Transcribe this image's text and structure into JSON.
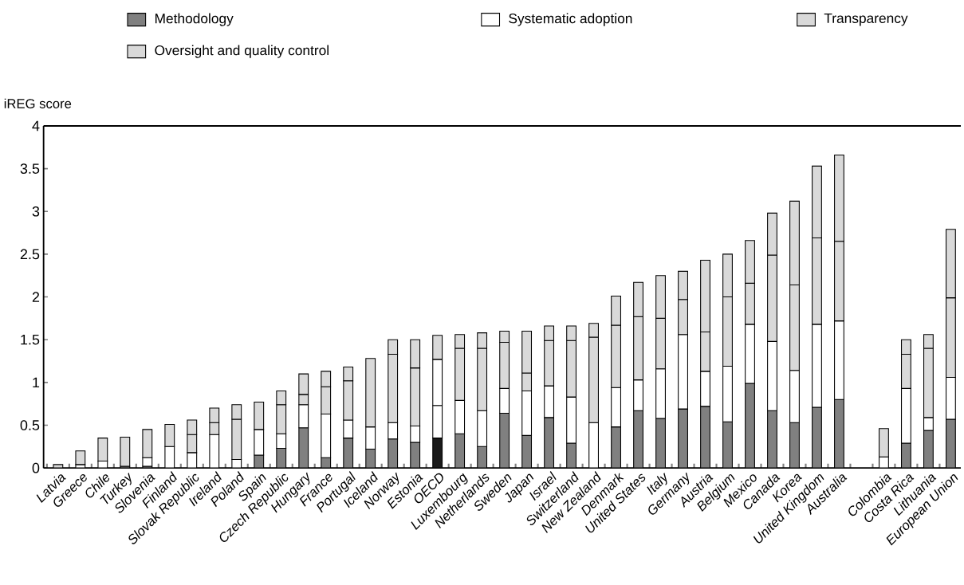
{
  "chart_data": {
    "type": "bar",
    "stacked": true,
    "ylabel": "iREG score",
    "legend": "top",
    "grid": false,
    "categories": [
      "Latvia",
      "Greece",
      "Chile",
      "Turkey",
      "Slovenia",
      "Finland",
      "Slovak Republic",
      "Ireland",
      "Poland",
      "Spain",
      "Czech Republic",
      "Hungary",
      "France",
      "Portugal",
      "Iceland",
      "Norway",
      "Estonia",
      "OECD",
      "Luxembourg",
      "Netherlands",
      "Sweden",
      "Japan",
      "Israel",
      "Switzerland",
      "New Zealand",
      "Denmark",
      "United States",
      "Italy",
      "Germany",
      "Austria",
      "Belgium",
      "Mexico",
      "Canada",
      "Korea",
      "United Kingdom",
      "Australia",
      null,
      "Colombia",
      "Costa Rica",
      "Lithuania",
      "European Union"
    ],
    "ylim": [
      0,
      4
    ],
    "yticks": [
      0,
      0.5,
      1,
      1.5,
      2,
      2.5,
      3,
      3.5,
      4
    ],
    "series": [
      {
        "name": "Methodology",
        "color": "#808080",
        "colors": [
          "#808080",
          "#808080",
          "#808080",
          "#808080",
          "#808080",
          "#808080",
          "#808080",
          "#808080",
          "#808080",
          "#808080",
          "#808080",
          "#808080",
          "#808080",
          "#808080",
          "#808080",
          "#808080",
          "#808080",
          "#1a1a1a",
          "#808080",
          "#808080",
          "#808080",
          "#808080",
          "#808080",
          "#808080",
          "#808080",
          "#808080",
          "#808080",
          "#808080",
          "#808080",
          "#808080",
          "#808080",
          "#808080",
          "#808080",
          "#808080",
          "#808080",
          "#808080",
          "#808080",
          "#808080",
          "#808080",
          "#808080",
          "#808080"
        ],
        "values": [
          null,
          null,
          null,
          0.02,
          0.02,
          null,
          null,
          null,
          null,
          0.15,
          0.23,
          0.47,
          0.12,
          0.35,
          0.22,
          0.34,
          0.3,
          0.35,
          0.4,
          0.25,
          0.64,
          0.38,
          0.59,
          0.29,
          null,
          0.48,
          0.67,
          0.58,
          0.69,
          0.72,
          0.54,
          0.99,
          0.67,
          0.53,
          0.71,
          0.8,
          null,
          null,
          0.29,
          0.44,
          0.57
        ]
      },
      {
        "name": "Systematic adoption",
        "color": "#ffffff",
        "values": [
          null,
          0.04,
          0.08,
          null,
          0.1,
          0.25,
          0.18,
          0.39,
          0.1,
          0.3,
          0.17,
          0.27,
          0.51,
          0.21,
          0.26,
          0.19,
          0.19,
          0.38,
          0.39,
          0.42,
          0.29,
          0.52,
          0.37,
          0.54,
          0.53,
          0.46,
          0.36,
          0.58,
          0.87,
          0.41,
          0.65,
          0.69,
          0.81,
          0.61,
          0.97,
          0.92,
          null,
          0.13,
          0.64,
          0.15,
          0.49
        ]
      },
      {
        "name": "Oversight and quality control",
        "color": "#d9d9d9",
        "colors": [
          "#d9d9d9",
          "#d9d9d9",
          "#d9d9d9",
          "#d9d9d9",
          "#d9d9d9",
          "#d9d9d9",
          "#d9d9d9",
          "#d9d9d9",
          "#d9d9d9",
          "#d9d9d9",
          "#d9d9d9",
          "#d9d9d9",
          "#d9d9d9",
          "#d9d9d9",
          "#d9d9d9",
          "#d9d9d9",
          "#d9d9d9",
          "#ffffff",
          "#d9d9d9",
          "#d9d9d9",
          "#d9d9d9",
          "#d9d9d9",
          "#d9d9d9",
          "#d9d9d9",
          "#d9d9d9",
          "#d9d9d9",
          "#d9d9d9",
          "#d9d9d9",
          "#d9d9d9",
          "#d9d9d9",
          "#d9d9d9",
          "#d9d9d9",
          "#d9d9d9",
          "#d9d9d9",
          "#d9d9d9",
          "#d9d9d9",
          "#d9d9d9",
          "#d9d9d9",
          "#d9d9d9",
          "#d9d9d9",
          "#d9d9d9"
        ],
        "values": [
          0.04,
          0.16,
          0.27,
          0.34,
          0.33,
          0.26,
          0.21,
          0.14,
          0.47,
          0.32,
          0.34,
          0.12,
          0.32,
          0.46,
          0.8,
          0.8,
          0.68,
          0.54,
          0.61,
          0.73,
          0.54,
          0.21,
          0.53,
          0.66,
          1.0,
          0.73,
          0.74,
          0.59,
          0.41,
          0.46,
          0.81,
          0.48,
          1.01,
          1.0,
          1.01,
          0.93,
          null,
          0.33,
          0.4,
          0.81,
          0.93
        ]
      },
      {
        "name": "Transparency",
        "color": "#d9d9d9",
        "values": [
          null,
          null,
          null,
          null,
          null,
          null,
          0.17,
          0.17,
          0.17,
          null,
          0.16,
          0.24,
          0.18,
          0.16,
          null,
          0.17,
          0.33,
          0.28,
          0.16,
          0.18,
          0.13,
          0.49,
          0.17,
          0.17,
          0.16,
          0.34,
          0.4,
          0.5,
          0.33,
          0.84,
          0.5,
          0.5,
          0.49,
          0.98,
          0.84,
          1.01,
          null,
          null,
          0.17,
          0.16,
          0.8
        ]
      }
    ]
  }
}
